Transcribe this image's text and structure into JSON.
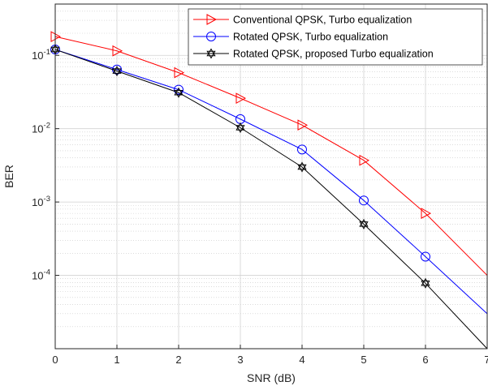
{
  "chart_data": {
    "type": "line",
    "title": "",
    "xlabel": "SNR (dB)",
    "ylabel": "BER",
    "xlim": [
      0,
      7
    ],
    "ylim": [
      1e-05,
      0.5
    ],
    "yscale": "log",
    "x_ticks": [
      0,
      1,
      2,
      3,
      4,
      5,
      6,
      7
    ],
    "y_ticks": [
      {
        "value": 0.1,
        "base": "10",
        "exp": "-1"
      },
      {
        "value": 0.01,
        "base": "10",
        "exp": "-2"
      },
      {
        "value": 0.001,
        "base": "10",
        "exp": "-3"
      },
      {
        "value": 0.0001,
        "base": "10",
        "exp": "-4"
      }
    ],
    "grid": true,
    "minor_grid": true,
    "legend_position": "top-right",
    "series": [
      {
        "name": "Conventional QPSK, Turbo equalization",
        "color": "#ff0000",
        "marker": "triangle-right",
        "x": [
          0,
          1,
          2,
          3,
          4,
          5,
          6,
          7
        ],
        "y": [
          0.18,
          0.115,
          0.058,
          0.026,
          0.0112,
          0.0037,
          0.0007,
          0.0001
        ]
      },
      {
        "name": "Rotated QPSK, Turbo equalization",
        "color": "#0000ff",
        "marker": "circle",
        "x": [
          0,
          1,
          2,
          3,
          4,
          5,
          6,
          7
        ],
        "y": [
          0.12,
          0.064,
          0.034,
          0.0135,
          0.0052,
          0.00105,
          0.00018,
          3e-05
        ]
      },
      {
        "name": "Rotated QPSK, proposed Turbo equalization",
        "color": "#000000",
        "marker": "hexagram",
        "x": [
          0,
          1,
          2,
          3,
          4,
          5,
          6,
          7
        ],
        "y": [
          0.12,
          0.061,
          0.031,
          0.0103,
          0.003,
          0.0005,
          7.8e-05,
          1e-05
        ]
      }
    ]
  }
}
